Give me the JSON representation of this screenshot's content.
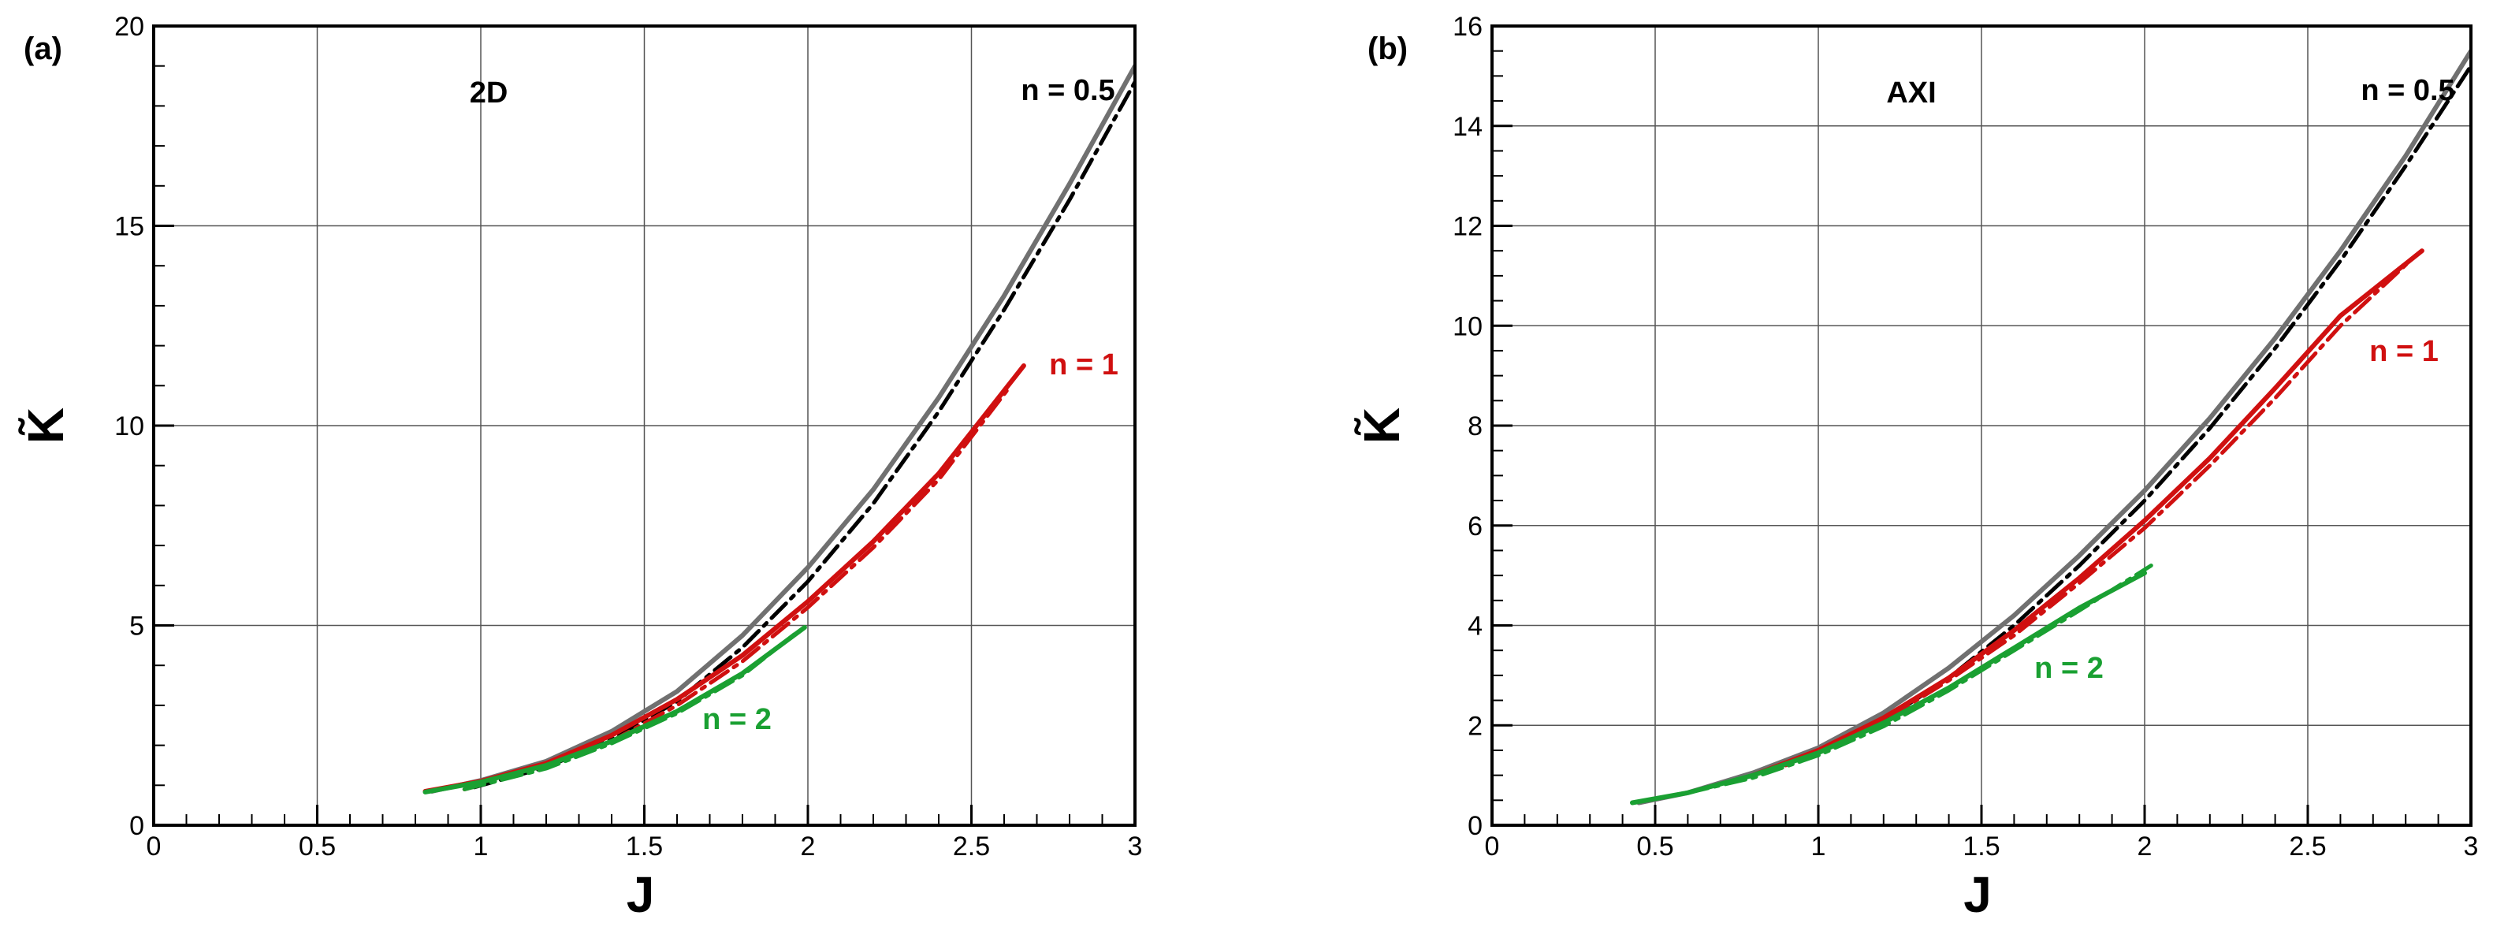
{
  "chart_data": [
    {
      "type": "line",
      "panel_label": "(a)",
      "xlabel": "J",
      "ylabel": "K̃",
      "xlim": [
        0,
        3
      ],
      "ylim": [
        0,
        20
      ],
      "xticks": [
        "0",
        "0.5",
        "1",
        "1.5",
        "2",
        "2.5",
        "3"
      ],
      "yticks": [
        "0",
        "5",
        "10",
        "15",
        "20"
      ],
      "grid": true,
      "annotations": [
        {
          "text": "2D",
          "color": "#000000"
        },
        {
          "text": "n = 0.5",
          "color": "#000000"
        },
        {
          "text": "n = 1",
          "color": "#d01010"
        },
        {
          "text": "n = 2",
          "color": "#1aa032"
        }
      ],
      "series": [
        {
          "color": "#707070",
          "style": "solid",
          "x": [
            0.85,
            1.0,
            1.2,
            1.4,
            1.6,
            1.8,
            2.0,
            2.2,
            2.4,
            2.6,
            2.8,
            3.0
          ],
          "y": [
            0.85,
            1.12,
            1.6,
            2.35,
            3.35,
            4.75,
            6.45,
            8.4,
            10.7,
            13.25,
            16.05,
            19.0
          ]
        },
        {
          "color": "#000000",
          "style": "dashdot",
          "x": [
            0.98,
            1.2,
            1.4,
            1.6,
            1.8,
            2.0,
            2.2,
            2.4,
            2.6,
            2.8,
            3.0
          ],
          "y": [
            0.95,
            1.45,
            2.15,
            3.1,
            4.45,
            6.1,
            8.05,
            10.35,
            12.9,
            15.65,
            18.6
          ]
        },
        {
          "color": "#d01010",
          "style": "solid",
          "x": [
            0.83,
            1.0,
            1.2,
            1.4,
            1.6,
            1.8,
            2.0,
            2.2,
            2.4,
            2.66
          ],
          "y": [
            0.85,
            1.1,
            1.55,
            2.25,
            3.15,
            4.25,
            5.6,
            7.1,
            8.8,
            11.5
          ]
        },
        {
          "color": "#d01010",
          "style": "dashdot",
          "x": [
            0.95,
            1.2,
            1.4,
            1.6,
            1.8,
            2.0,
            2.2,
            2.4,
            2.62
          ],
          "y": [
            0.9,
            1.45,
            2.1,
            3.0,
            4.1,
            5.45,
            6.95,
            8.65,
            11.0
          ]
        },
        {
          "color": "#1aa032",
          "style": "solid",
          "x": [
            0.83,
            1.0,
            1.2,
            1.4,
            1.6,
            1.8,
            1.99
          ],
          "y": [
            0.83,
            1.08,
            1.5,
            2.1,
            2.85,
            3.8,
            4.95
          ]
        },
        {
          "color": "#1aa032",
          "style": "dashdot",
          "x": [
            0.95,
            1.2,
            1.4,
            1.6,
            1.8,
            1.97
          ],
          "y": [
            0.9,
            1.42,
            2.05,
            2.8,
            3.75,
            4.85
          ]
        }
      ]
    },
    {
      "type": "line",
      "panel_label": "(b)",
      "xlabel": "J",
      "ylabel": "K̃",
      "xlim": [
        0,
        3
      ],
      "ylim": [
        0,
        16
      ],
      "xticks": [
        "0",
        "0.5",
        "1",
        "1.5",
        "2",
        "2.5",
        "3"
      ],
      "yticks": [
        "0",
        "2",
        "4",
        "6",
        "8",
        "10",
        "12",
        "14",
        "16"
      ],
      "grid": true,
      "annotations": [
        {
          "text": "AXI",
          "color": "#000000"
        },
        {
          "text": "n = 0.5",
          "color": "#000000"
        },
        {
          "text": "n = 1",
          "color": "#d01010"
        },
        {
          "text": "n = 2",
          "color": "#1aa032"
        }
      ],
      "series": [
        {
          "color": "#707070",
          "style": "solid",
          "x": [
            0.45,
            0.6,
            0.8,
            1.0,
            1.2,
            1.4,
            1.6,
            1.8,
            2.0,
            2.2,
            2.4,
            2.6,
            2.8,
            3.0
          ],
          "y": [
            0.45,
            0.65,
            1.05,
            1.55,
            2.25,
            3.15,
            4.2,
            5.4,
            6.7,
            8.15,
            9.75,
            11.5,
            13.4,
            15.5
          ]
        },
        {
          "color": "#000000",
          "style": "dashdot",
          "x": [
            0.8,
            1.0,
            1.2,
            1.4,
            1.6,
            1.8,
            2.0,
            2.2,
            2.4,
            2.6,
            2.8,
            3.0
          ],
          "y": [
            1.0,
            1.45,
            2.1,
            2.95,
            4.0,
            5.2,
            6.5,
            7.95,
            9.55,
            11.3,
            13.2,
            15.2
          ]
        },
        {
          "color": "#d01010",
          "style": "solid",
          "x": [
            0.8,
            1.0,
            1.2,
            1.4,
            1.6,
            1.8,
            2.0,
            2.2,
            2.4,
            2.6,
            2.85
          ],
          "y": [
            1.0,
            1.5,
            2.15,
            2.95,
            3.9,
            4.95,
            6.1,
            7.35,
            8.75,
            10.2,
            11.5
          ]
        },
        {
          "color": "#d01010",
          "style": "dashdot",
          "x": [
            0.9,
            1.2,
            1.4,
            1.6,
            1.8,
            2.0,
            2.2,
            2.4,
            2.6,
            2.83
          ],
          "y": [
            1.2,
            2.1,
            2.9,
            3.8,
            4.85,
            5.95,
            7.2,
            8.55,
            10.0,
            11.4
          ]
        },
        {
          "color": "#1aa032",
          "style": "solid",
          "x": [
            0.43,
            0.6,
            0.8,
            1.0,
            1.2,
            1.4,
            1.6,
            1.8,
            2.0
          ],
          "y": [
            0.45,
            0.65,
            1.0,
            1.45,
            2.05,
            2.75,
            3.55,
            4.35,
            5.05
          ]
        },
        {
          "color": "#1aa032",
          "style": "dashdot",
          "x": [
            0.6,
            0.8,
            1.0,
            1.2,
            1.4,
            1.6,
            1.8,
            2.02
          ],
          "y": [
            0.65,
            0.95,
            1.4,
            1.98,
            2.7,
            3.5,
            4.3,
            5.2
          ]
        }
      ]
    }
  ]
}
